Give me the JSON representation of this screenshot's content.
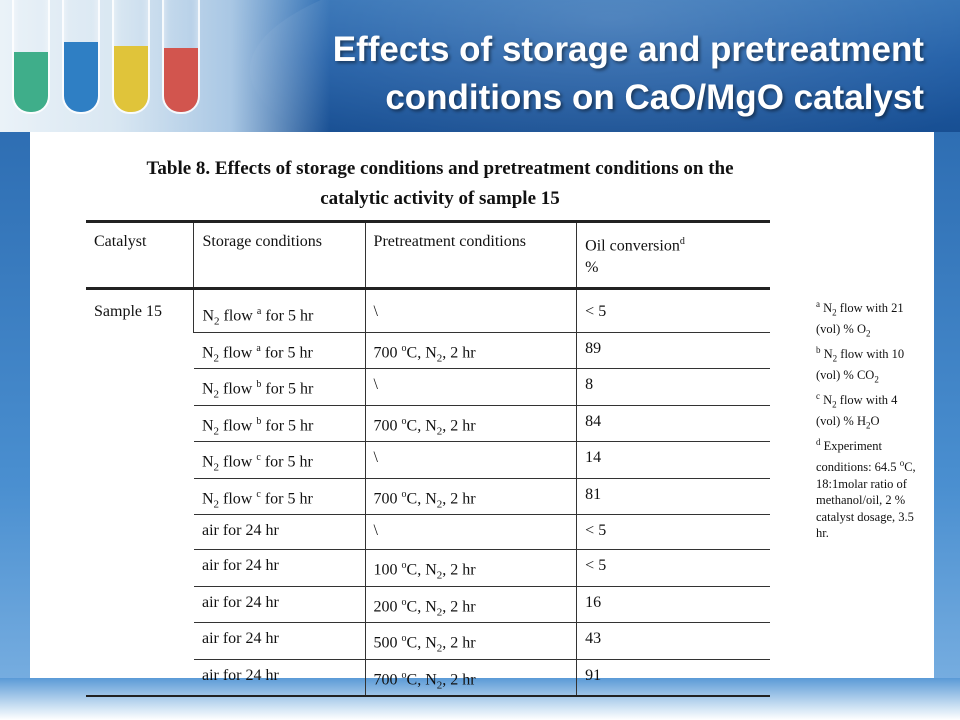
{
  "slide": {
    "title_line1": "Effects of storage and pretreatment",
    "title_line2": "conditions on CaO/MgO catalyst"
  },
  "caption": {
    "line1": "Table 8. Effects of storage conditions and pretreatment conditions on the",
    "line2": "catalytic activity of sample 15"
  },
  "table": {
    "headers": {
      "catalyst": "Catalyst",
      "storage": "Storage conditions",
      "pretreatment": "Pretreatment conditions",
      "conversion": "Oil conversion",
      "conversion_sup": "d",
      "conversion_unit": "%"
    },
    "catalyst_name": "Sample 15",
    "rows": [
      {
        "storage_gas": "N",
        "storage_sub": "2",
        "storage_mid": " flow ",
        "storage_sup": "a",
        "storage_tail": " for 5 hr",
        "pre": "\\",
        "conv": "< 5"
      },
      {
        "storage_gas": "N",
        "storage_sub": "2",
        "storage_mid": " flow ",
        "storage_sup": "a",
        "storage_tail": " for 5 hr",
        "pre": "700 oC, N2, 2 hr",
        "pre_num": "700 ",
        "pre_sup": "o",
        "pre_c": "C, N",
        "pre_sub": "2",
        "pre_tail": ", 2 hr",
        "conv": "89"
      },
      {
        "storage_gas": "N",
        "storage_sub": "2",
        "storage_mid": " flow ",
        "storage_sup": "b",
        "storage_tail": " for 5 hr",
        "pre": "\\",
        "conv": "8"
      },
      {
        "storage_gas": "N",
        "storage_sub": "2",
        "storage_mid": " flow ",
        "storage_sup": "b",
        "storage_tail": " for 5 hr",
        "pre_num": "700 ",
        "pre_sup": "o",
        "pre_c": "C, N",
        "pre_sub": "2",
        "pre_tail": ", 2 hr",
        "conv": "84"
      },
      {
        "storage_gas": "N",
        "storage_sub": "2",
        "storage_mid": " flow ",
        "storage_sup": "c",
        "storage_tail": " for 5 hr",
        "pre": "\\",
        "conv": "14"
      },
      {
        "storage_gas": "N",
        "storage_sub": "2",
        "storage_mid": " flow ",
        "storage_sup": "c",
        "storage_tail": " for 5 hr",
        "pre_num": "700 ",
        "pre_sup": "o",
        "pre_c": "C, N",
        "pre_sub": "2",
        "pre_tail": ", 2 hr",
        "conv": "81"
      },
      {
        "storage": "air for 24 hr",
        "pre": "\\",
        "conv": "< 5"
      },
      {
        "storage": "air for 24 hr",
        "pre_num": "100 ",
        "pre_sup": "o",
        "pre_c": "C, N",
        "pre_sub": "2",
        "pre_tail": ", 2 hr",
        "conv": "< 5"
      },
      {
        "storage": "air for 24 hr",
        "pre_num": "200 ",
        "pre_sup": "o",
        "pre_c": "C, N",
        "pre_sub": "2",
        "pre_tail": ", 2 hr",
        "conv": "16"
      },
      {
        "storage": "air for 24 hr",
        "pre_num": "500 ",
        "pre_sup": "o",
        "pre_c": "C, N",
        "pre_sub": "2",
        "pre_tail": ", 2 hr",
        "conv": "43"
      },
      {
        "storage": "air for 24 hr",
        "pre_num": "700 ",
        "pre_sup": "o",
        "pre_c": "C, N",
        "pre_sub": "2",
        "pre_tail": ", 2 hr",
        "conv": "91"
      }
    ]
  },
  "footnotes": {
    "a": {
      "mark": "a",
      "text1": " N",
      "sub": "2",
      "text2": " flow with 21 (vol) % O",
      "sub2": "2"
    },
    "b": {
      "mark": "b",
      "text1": " N",
      "sub": "2",
      "text2": " flow with 10 (vol) % CO",
      "sub2": "2"
    },
    "c": {
      "mark": "c",
      "text1": " N",
      "sub": "2",
      "text2": " flow with 4 (vol) % H",
      "sub2": "2",
      "text3": "O"
    },
    "d": {
      "mark": "d",
      "text1": " Experiment conditions: 64.5 ",
      "sup": "o",
      "text2": "C, 18:1molar ratio of methanol/oil, 2 % catalyst dosage, 3.5 hr."
    }
  },
  "colors": {
    "header_blue": "#1f5da6",
    "title_text": "#ffffff"
  }
}
